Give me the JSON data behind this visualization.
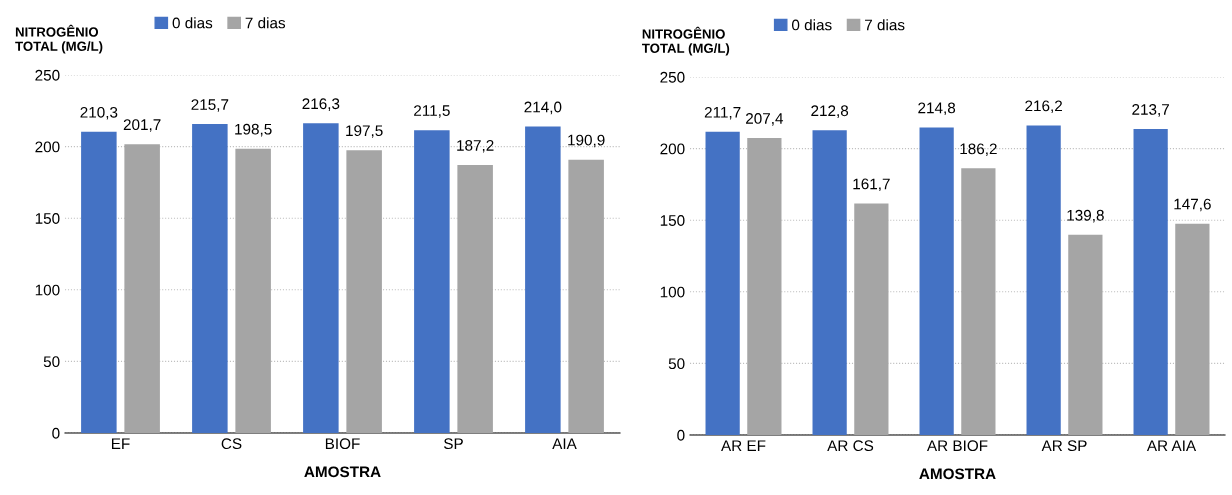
{
  "chart_data": [
    {
      "type": "bar",
      "ylabel": "NITROGÊNIO\nTOTAL (MG/L)",
      "xlabel": "AMOSTRA",
      "categories": [
        "EF",
        "CS",
        "BIOF",
        "SP",
        "AIA"
      ],
      "ylim": [
        0,
        250
      ],
      "yticks": [
        0,
        50,
        100,
        150,
        200,
        250
      ],
      "grid": "y",
      "legend": "top",
      "series": [
        {
          "name": "0 dias",
          "color": "#4472c4",
          "values": [
            210.3,
            215.7,
            216.3,
            211.5,
            214.0
          ],
          "value_labels": [
            "210,3",
            "215,7",
            "216,3",
            "211,5",
            "214,0"
          ]
        },
        {
          "name": "7 dias",
          "color": "#a5a5a5",
          "values": [
            201.7,
            198.5,
            197.5,
            187.2,
            190.9
          ],
          "value_labels": [
            "201,7",
            "198,5",
            "197,5",
            "187,2",
            "190,9"
          ]
        }
      ]
    },
    {
      "type": "bar",
      "ylabel": "NITROGÊNIO\nTOTAL (MG/L)",
      "xlabel": "AMOSTRA",
      "categories": [
        "AR EF",
        "AR CS",
        "AR BIOF",
        "AR SP",
        "AR AIA"
      ],
      "ylim": [
        0,
        250
      ],
      "yticks": [
        0,
        50,
        100,
        150,
        200,
        250
      ],
      "grid": "y",
      "legend": "top",
      "series": [
        {
          "name": "0 dias",
          "color": "#4472c4",
          "values": [
            211.7,
            212.8,
            214.8,
            216.2,
            213.7
          ],
          "value_labels": [
            "211,7",
            "212,8",
            "214,8",
            "216,2",
            "213,7"
          ]
        },
        {
          "name": "7 dias",
          "color": "#a5a5a5",
          "values": [
            207.4,
            161.7,
            186.2,
            139.8,
            147.6
          ],
          "value_labels": [
            "207,4",
            "161,7",
            "186,2",
            "139,8",
            "147,6"
          ]
        }
      ]
    }
  ]
}
